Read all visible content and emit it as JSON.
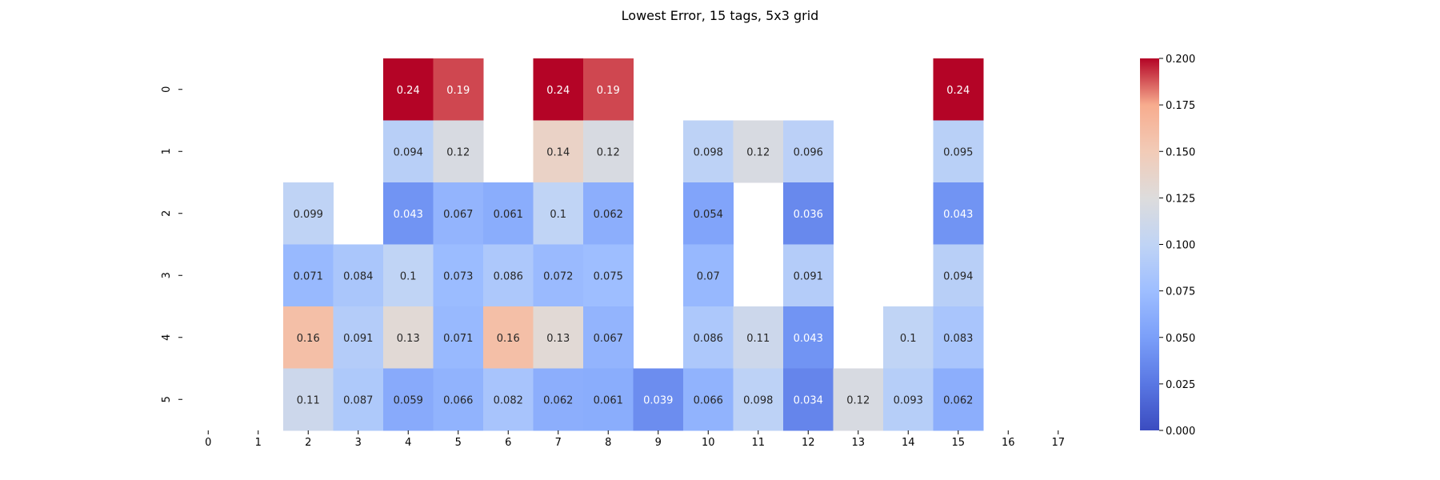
{
  "chart_data": {
    "type": "heatmap",
    "title": "Lowest Error, 15 tags, 5x3 grid",
    "xlabel": "",
    "ylabel": "",
    "x_categories": [
      "0",
      "1",
      "2",
      "3",
      "4",
      "5",
      "6",
      "7",
      "8",
      "9",
      "10",
      "11",
      "12",
      "13",
      "14",
      "15",
      "16",
      "17"
    ],
    "y_categories": [
      "0",
      "1",
      "2",
      "3",
      "4",
      "5"
    ],
    "values": [
      [
        null,
        null,
        null,
        null,
        0.24,
        0.19,
        null,
        0.24,
        0.19,
        null,
        null,
        null,
        null,
        null,
        null,
        0.24,
        null,
        null
      ],
      [
        null,
        null,
        null,
        null,
        0.094,
        0.12,
        null,
        0.14,
        0.12,
        null,
        0.098,
        0.12,
        0.096,
        null,
        null,
        0.095,
        null,
        null
      ],
      [
        null,
        null,
        0.099,
        null,
        0.043,
        0.067,
        0.061,
        0.1,
        0.062,
        null,
        0.054,
        null,
        0.036,
        null,
        null,
        0.043,
        null,
        null
      ],
      [
        null,
        null,
        0.071,
        0.084,
        0.1,
        0.073,
        0.086,
        0.072,
        0.075,
        null,
        0.07,
        null,
        0.091,
        null,
        null,
        0.094,
        null,
        null
      ],
      [
        null,
        null,
        0.16,
        0.091,
        0.13,
        0.071,
        0.16,
        0.13,
        0.067,
        null,
        0.086,
        0.11,
        0.043,
        null,
        0.1,
        0.083,
        null,
        null
      ],
      [
        null,
        null,
        0.11,
        0.087,
        0.059,
        0.066,
        0.082,
        0.062,
        0.061,
        0.039,
        0.066,
        0.098,
        0.034,
        0.12,
        0.093,
        0.062,
        null,
        null
      ]
    ],
    "colorbar": {
      "colormap": "coolwarm",
      "vmin": 0.0,
      "vmax": 0.2,
      "ticks": [
        "0.000",
        "0.025",
        "0.050",
        "0.075",
        "0.100",
        "0.125",
        "0.150",
        "0.175",
        "0.200"
      ]
    },
    "annotations": true,
    "grid": false,
    "legend": "colorbar-right"
  }
}
